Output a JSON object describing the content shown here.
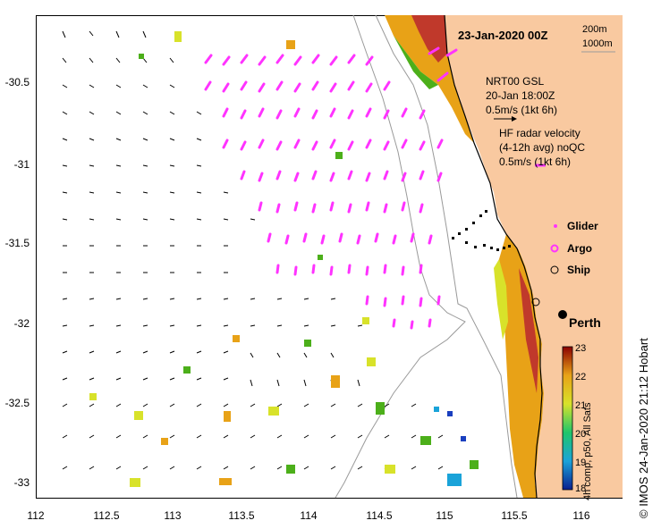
{
  "title": "23-Jan-2020 00Z",
  "scale_legend": {
    "contour_a": "200m",
    "contour_b": "1000m"
  },
  "nrt": {
    "line1": "NRT00 GSL",
    "line2": "20-Jan 18:00Z",
    "line3": "0.5m/s (1kt 6h)"
  },
  "hf": {
    "line1": "HF radar velocity",
    "line2": "(4-12h avg) noQC",
    "line3": "0.5m/s (1kt 6h)"
  },
  "legend": {
    "glider": "Glider",
    "argo": "Argo",
    "ship": "Ship"
  },
  "place": "Perth",
  "y_ticks": [
    "-30.5",
    "-31",
    "-31.5",
    "-32",
    "-32.5",
    "-33"
  ],
  "x_ticks": [
    "112",
    "112.5",
    "113",
    "113.5",
    "114",
    "114.5",
    "115",
    "115.5",
    "116"
  ],
  "colorbar": {
    "ticks": [
      "23",
      "22",
      "21",
      "20",
      "19",
      "18"
    ],
    "label": "4h comp, p50, All Sats"
  },
  "credit": "© IMOS 24-Jan-2020 21:12 Hobart",
  "colors": {
    "land": "#f9c9a0",
    "sst_warm": "#c0392b",
    "sst_mid": "#e8a217",
    "sst_green": "#4caf1a",
    "sst_yellow": "#d8e22a",
    "hf_radar": "#ff33ff",
    "contour": "#9a9a9a"
  }
}
